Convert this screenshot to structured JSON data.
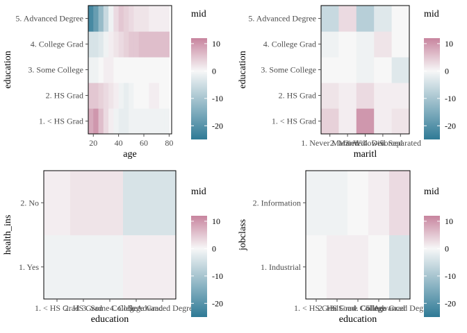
{
  "colors": {
    "low": "#2f7a96",
    "mid": "#f7f7f7",
    "high": "#c7849e",
    "panel_border": "#000000",
    "tick": "#4d4d4d"
  },
  "chart_data": [
    {
      "type": "heatmap",
      "title": "",
      "xlabel": "age",
      "ylabel": "education",
      "legend_title": "mid",
      "legend_position": "right",
      "x_scale": "continuous",
      "xlim": [
        16,
        82
      ],
      "x_ticks": [
        20,
        40,
        60,
        80
      ],
      "y_categories": [
        "1. < HS Grad",
        "2. HS Grad",
        "3. Some College",
        "4. College Grad",
        "5. Advanced Degree"
      ],
      "x": [
        18,
        22,
        26,
        30,
        34,
        38,
        42,
        46,
        50,
        54,
        58,
        62,
        66,
        70,
        74,
        78
      ],
      "values": [
        [
          8,
          10,
          6,
          3,
          1,
          -1,
          -2,
          -2,
          -1,
          -1,
          -1,
          -1,
          -1,
          -1,
          -1,
          -1
        ],
        [
          5,
          5,
          4,
          3,
          2,
          1,
          -1,
          -2,
          -1,
          0,
          0,
          0,
          1,
          1,
          0,
          0
        ],
        [
          -1,
          -1,
          0,
          1,
          1,
          0,
          0,
          0,
          0,
          0,
          0,
          0,
          0,
          0,
          0,
          0
        ],
        [
          -4,
          -4,
          -3,
          -1,
          1,
          2,
          3,
          4,
          5,
          5,
          6,
          6,
          6,
          6,
          6,
          6
        ],
        [
          -22,
          -18,
          -12,
          -6,
          -1,
          3,
          5,
          4,
          3,
          2,
          2,
          2,
          1,
          1,
          1,
          1
        ]
      ],
      "legend_ticks": [
        10,
        0,
        -10,
        -20
      ],
      "legend_range": [
        -25,
        12
      ]
    },
    {
      "type": "heatmap",
      "title": "",
      "xlabel": "maritl",
      "ylabel": "education",
      "legend_title": "mid",
      "legend_position": "right",
      "x_scale": "discrete",
      "x_categories": [
        "1. Never Married",
        "2. Married",
        "3. Widowed",
        "4. Divorced",
        "5. Separated"
      ],
      "y_categories": [
        "1. < HS Grad",
        "2. HS Grad",
        "3. Some College",
        "4. College Grad",
        "5. Advanced Degree"
      ],
      "values": [
        [
          4,
          1,
          10,
          1,
          2
        ],
        [
          2,
          1,
          3,
          1,
          1
        ],
        [
          0,
          0,
          -1,
          0,
          -3
        ],
        [
          -1,
          0,
          -1,
          2,
          0
        ],
        [
          -6,
          3,
          -8,
          -3,
          0
        ]
      ],
      "legend_ticks": [
        10,
        0,
        -10,
        -20
      ],
      "legend_range": [
        -25,
        12
      ]
    },
    {
      "type": "heatmap",
      "title": "",
      "xlabel": "education",
      "ylabel": "health_ins",
      "legend_title": "mid",
      "legend_position": "right",
      "x_scale": "discrete",
      "x_categories": [
        "1. < HS Grad",
        "2. HS Grad",
        "3. Some College",
        "4. College Grad",
        "5. Advanced Degree"
      ],
      "y_categories": [
        "1. Yes",
        "2. No"
      ],
      "values": [
        [
          -1,
          -1,
          -1,
          1,
          1
        ],
        [
          1,
          2,
          2,
          -4,
          -4
        ]
      ],
      "legend_ticks": [
        10,
        0,
        -10,
        -20
      ],
      "legend_range": [
        -25,
        12
      ]
    },
    {
      "type": "heatmap",
      "title": "",
      "xlabel": "education",
      "ylabel": "jobclass",
      "legend_title": "mid",
      "legend_position": "right",
      "x_scale": "discrete",
      "x_categories": [
        "1. < HS Grad",
        "2. HS Grad",
        "3. Some College",
        "4. College Grad",
        "5. Advanced Degree"
      ],
      "y_categories": [
        "1. Industrial",
        "2. Information"
      ],
      "values": [
        [
          0,
          1,
          1,
          0,
          -4
        ],
        [
          -1,
          -1,
          0,
          1,
          3
        ]
      ],
      "legend_ticks": [
        10,
        0,
        -10,
        -20
      ],
      "legend_range": [
        -25,
        12
      ]
    }
  ]
}
